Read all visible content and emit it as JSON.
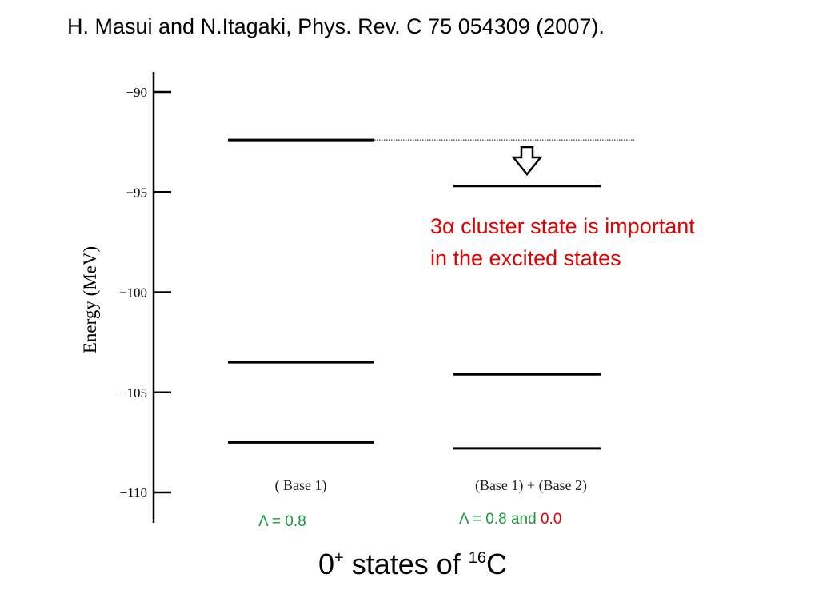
{
  "slide_title": "H. Masui and N.Itagaki, Phys. Rev. C 75 054309 (2007).",
  "annotation": {
    "line1": "3α cluster state is important",
    "line2": "in the excited states"
  },
  "lambda_labels": {
    "left": "Λ = 0.8",
    "right_part1": "Λ = 0.8 and ",
    "right_part2": "0.0"
  },
  "caption": {
    "part1": "0",
    "sup1": "+",
    "part2": " states of ",
    "sup2": "16",
    "part3": "C"
  },
  "colors": {
    "annotation": "#e00000",
    "lambda_green": "#1a9a3a",
    "lambda_red": "#e00000",
    "levels": "#000000"
  },
  "chart_data": {
    "type": "level-diagram",
    "ylabel": "Energy (MeV)",
    "yticks": [
      -90,
      -95,
      -100,
      -105,
      -110
    ],
    "ytick_labels": [
      "−90",
      "−95",
      "−100",
      "−105",
      "−110"
    ],
    "ylim": [
      -111.5,
      -89
    ],
    "columns": [
      {
        "label": "( Base 1)",
        "levels": [
          -92.4,
          -103.5,
          -107.5
        ]
      },
      {
        "label": "(Base 1) + (Base 2)",
        "levels": [
          -94.7,
          -104.1,
          -107.8
        ]
      }
    ],
    "connector": {
      "energy": -92.4,
      "from_column": 0,
      "to_column": 1,
      "style": "dotted"
    },
    "arrow": {
      "column": 1,
      "direction": "down",
      "style": "hollow"
    }
  }
}
